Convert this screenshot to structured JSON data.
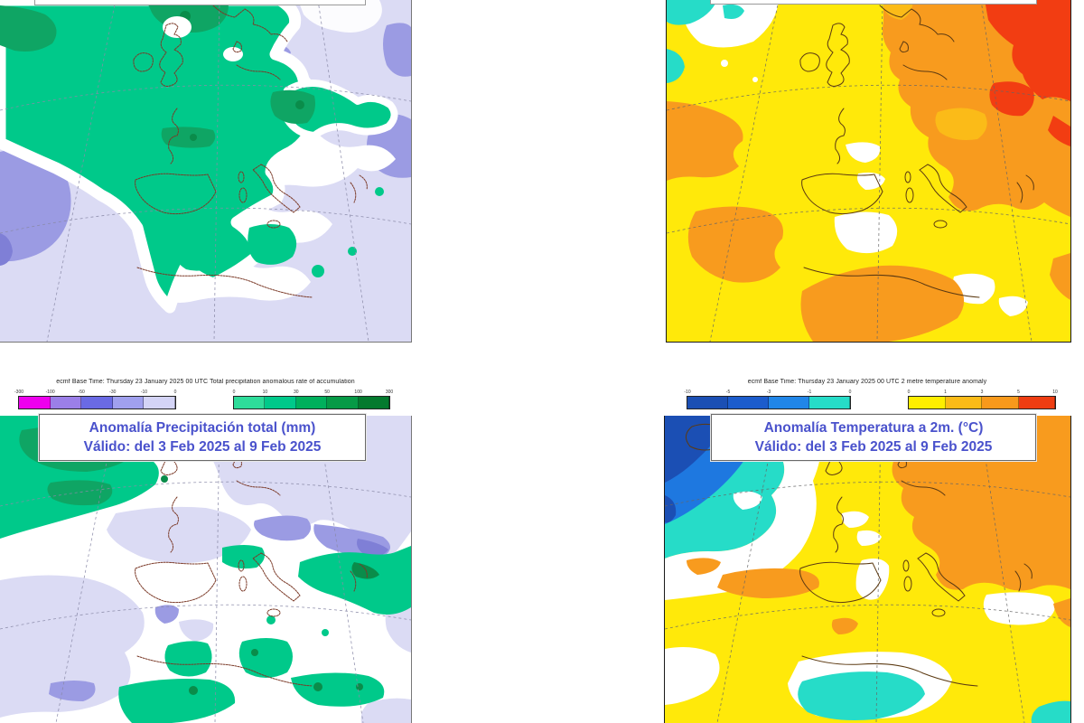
{
  "page_bg": "#ffffff",
  "title_text_color": "#4A52CC",
  "panels": {
    "top_left": {
      "name": "precipitation-anomaly-map-week1",
      "description_visible_text": ""
    },
    "top_right": {
      "name": "temperature-anomaly-map-week1",
      "description_visible_text": ""
    },
    "bottom_left": {
      "base_time_line": "ecmf  Base Time: Thursday 23 January 2025 00 UTC Total precipitation anomalous rate of accumulation",
      "title_line1": "Anomalía Precipitación total (mm)",
      "title_line2": "Válido: del 3 Feb 2025 al 9 Feb 2025",
      "legend_negative": {
        "colors": [
          "#EE00EE",
          "#9B7FE8",
          "#6A6AE4",
          "#A0A0EE",
          "#D4D4F6"
        ],
        "ticks": [
          "-300",
          "-100",
          "-50",
          "-30",
          "-10",
          "0"
        ]
      },
      "legend_positive": {
        "colors": [
          "#2EDC9A",
          "#00C98A",
          "#00B05C",
          "#069A46",
          "#047A2E"
        ],
        "ticks": [
          "0",
          "10",
          "30",
          "50",
          "100",
          "300"
        ]
      }
    },
    "bottom_right": {
      "base_time_line": "ecmf  Base Time: Thursday 23 January 2025 00 UTC 2 metre temperature anomaly",
      "title_line1": "Anomalía Temperatura a 2m. (°C)",
      "title_line2": "Válido: del 3 Feb 2025 al 9 Feb 2025",
      "legend_negative": {
        "colors": [
          "#1B4FB4",
          "#1C5CCC",
          "#2186E8",
          "#26DCC8"
        ],
        "ticks": [
          "-10",
          "-5",
          "-3",
          "-1",
          "0"
        ]
      },
      "legend_positive": {
        "colors": [
          "#FFEE00",
          "#FBBB18",
          "#F8991B",
          "#EE3D12"
        ],
        "ticks": [
          "0",
          "1",
          "3",
          "5",
          "10"
        ]
      }
    }
  },
  "map_palette": {
    "precip_positive": "#00C98A",
    "precip_positive_dark": "#0FA564",
    "precip_positive_darkest": "#0A8C4A",
    "precip_negative_light": "#DBDBF4",
    "precip_negative_mid": "#9B9BE3",
    "precip_negative_dark": "#7F7FD6",
    "temp_yellow": "#FFE90A",
    "temp_amber": "#FBBB18",
    "temp_orange": "#F89B1E",
    "temp_red": "#F23D12",
    "temp_cyan": "#26DCC8",
    "temp_blue": "#1E78E0",
    "temp_dark_blue": "#1B4FB4",
    "coast_precip": "#7B3A28",
    "coast_temp": "#5C3A12"
  }
}
